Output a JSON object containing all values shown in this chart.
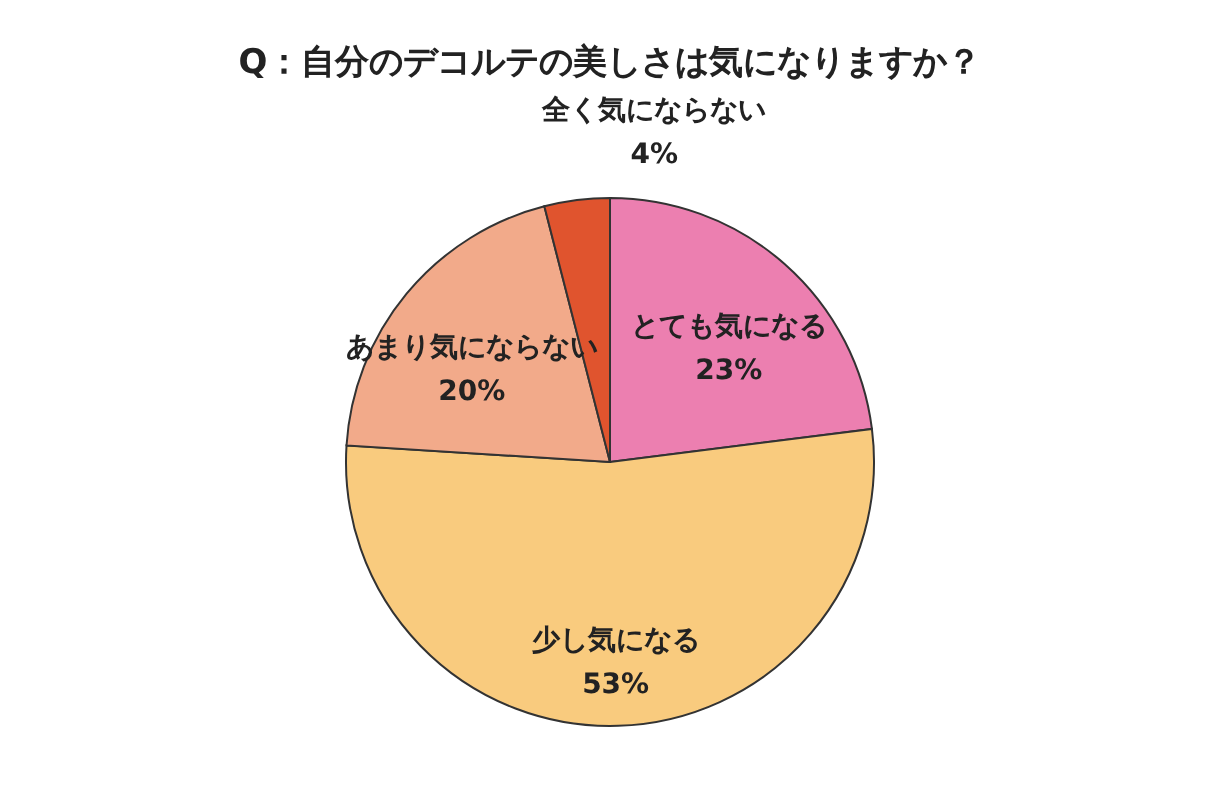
{
  "chart_data": {
    "type": "pie",
    "title": "Q：自分のデコルテの美しさは気になりますか？",
    "categories": [
      "とても気になる",
      "少し気になる",
      "あまり気にならない",
      "全く気にならない"
    ],
    "values": [
      23,
      53,
      20,
      4
    ],
    "value_labels": [
      "23%",
      "53%",
      "20%",
      "4%"
    ],
    "colors": [
      "#ec7fb0",
      "#f9cb7e",
      "#f2aa8a",
      "#e0542e"
    ],
    "legend": false
  }
}
